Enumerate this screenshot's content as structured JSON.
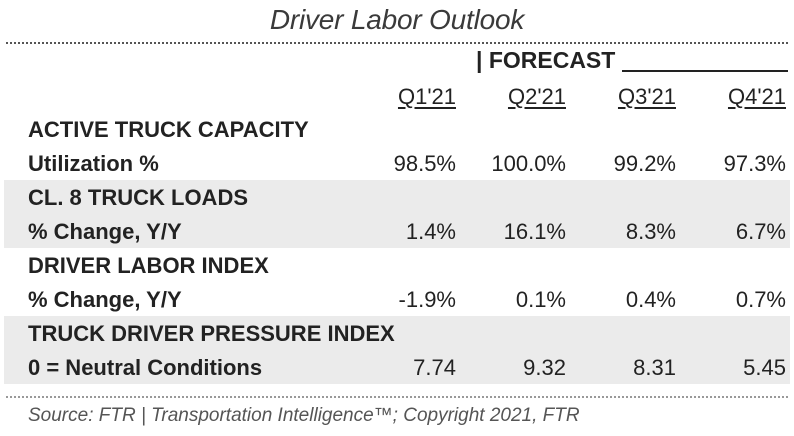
{
  "title": "Driver Labor Outlook",
  "forecast_label": "| FORECAST",
  "columns": [
    "Q1'21",
    "Q2'21",
    "Q3'21",
    "Q4'21"
  ],
  "rows": [
    {
      "heading": "ACTIVE TRUCK CAPACITY",
      "metric": "Utilization %",
      "values": [
        "98.5%",
        "100.0%",
        "99.2%",
        "97.3%"
      ]
    },
    {
      "heading": "CL. 8 TRUCK LOADS",
      "metric": "% Change, Y/Y",
      "values": [
        "1.4%",
        "16.1%",
        "8.3%",
        "6.7%"
      ]
    },
    {
      "heading": "DRIVER LABOR INDEX",
      "metric": "% Change, Y/Y",
      "values": [
        "-1.9%",
        "0.1%",
        "0.4%",
        "0.7%"
      ]
    },
    {
      "heading": "TRUCK DRIVER PRESSURE INDEX",
      "metric": "0 = Neutral Conditions",
      "values": [
        "7.74",
        "9.32",
        "8.31",
        "5.45"
      ]
    }
  ],
  "source": "Source: FTR | Transportation Intelligence™; Copyright 2021, FTR",
  "colors": {
    "band_shade": "#ebebeb",
    "text": "#222222",
    "source_text": "#555555"
  }
}
